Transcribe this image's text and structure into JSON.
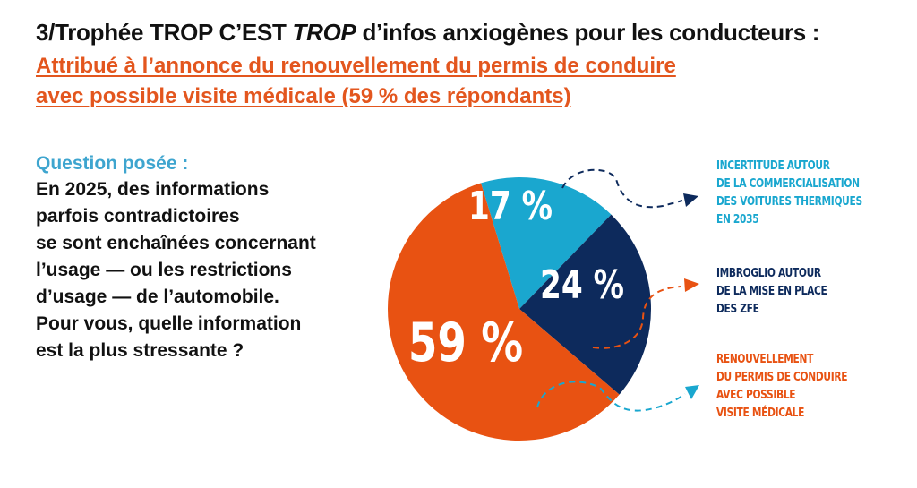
{
  "header": {
    "title_part1": "3/Trophée TROP C’EST ",
    "title_italic": "TROP",
    "title_part2": " d’infos anxiogènes pour les conducteurs :",
    "subtitle_lines": [
      "Attribué à l’annonce du renouvellement du permis de conduire",
      "avec possible visite médicale (59 % des répondants)"
    ]
  },
  "question": {
    "label": "Question posée :",
    "lines": [
      "En 2025, des informations",
      "parfois contradictoires",
      "se sont enchaînées concernant",
      "l’usage — ou les restrictions",
      "d’usage — de l’automobile.",
      "Pour vous, quelle information",
      "est la plus stressante ?"
    ]
  },
  "chart_data": {
    "type": "pie",
    "title": "Trophée TROP C’EST TROP d’infos anxiogènes pour les conducteurs",
    "slices": [
      {
        "label": "Incertitude autour de la commercialisation des voitures thermiques en 2035",
        "value": 17,
        "display": "17 %",
        "color": "#1aa7cf",
        "legend_lines": [
          "INCERTITUDE AUTOUR",
          "DE LA COMMERCIALISATION",
          "DES VOITURES THERMIQUES",
          "EN 2035"
        ],
        "legend_color": "#1aa7cf"
      },
      {
        "label": "Imbroglio autour de la mise en place des ZFE",
        "value": 24,
        "display": "24 %",
        "color": "#0d2a5c",
        "legend_lines": [
          "IMBROGLIO AUTOUR",
          "DE LA MISE EN PLACE",
          "DES ZFE"
        ],
        "legend_color": "#0d2a5c"
      },
      {
        "label": "Renouvellement du permis de conduire avec possible visite médicale",
        "value": 59,
        "display": "59 %",
        "color": "#e85212",
        "legend_lines": [
          "RENOUVELLEMENT",
          "DU PERMIS DE CONDUIRE",
          "AVEC POSSIBLE",
          "VISITE MÉDICALE"
        ],
        "legend_color": "#e85212"
      }
    ],
    "start_angle_deg": -17,
    "units": "% des répondants"
  }
}
